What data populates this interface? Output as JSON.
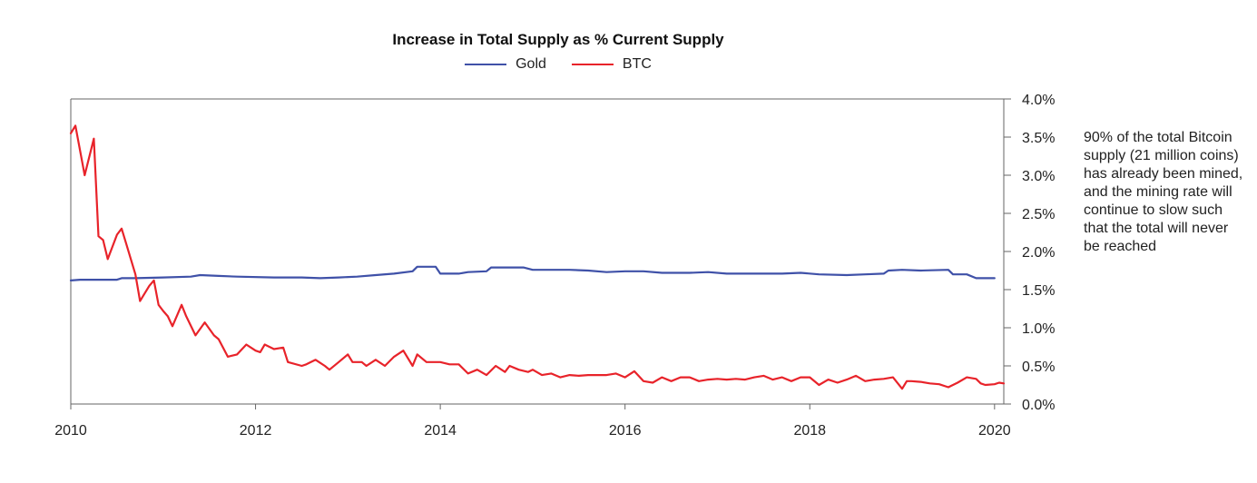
{
  "chart_data": {
    "type": "line",
    "title": "Increase in Total Supply as % Current Supply",
    "xlabel": "",
    "ylabel": "",
    "xlim": [
      2010,
      2020.1
    ],
    "ylim": [
      0.0,
      4.0
    ],
    "x_ticks": [
      2010,
      2012,
      2014,
      2016,
      2018,
      2020
    ],
    "x_tick_labels": [
      "2010",
      "2012",
      "2014",
      "2016",
      "2018",
      "2020"
    ],
    "y_ticks": [
      0.0,
      0.5,
      1.0,
      1.5,
      2.0,
      2.5,
      3.0,
      3.5,
      4.0
    ],
    "y_tick_labels": [
      "0.0%",
      "0.5%",
      "1.0%",
      "1.5%",
      "2.0%",
      "2.5%",
      "3.0%",
      "3.5%",
      "4.0%"
    ],
    "grid": false,
    "legend_position": "top-center",
    "annotation": "90% of the total Bitcoin supply (21 million coins) has already been mined, and the mining rate will continue to slow such that the total will never be reached",
    "series": [
      {
        "name": "Gold",
        "color": "#3f51a8",
        "points": [
          [
            2010.0,
            1.62
          ],
          [
            2010.1,
            1.63
          ],
          [
            2010.5,
            1.63
          ],
          [
            2010.55,
            1.65
          ],
          [
            2010.7,
            1.65
          ],
          [
            2011.0,
            1.66
          ],
          [
            2011.3,
            1.67
          ],
          [
            2011.4,
            1.69
          ],
          [
            2011.6,
            1.68
          ],
          [
            2011.8,
            1.67
          ],
          [
            2012.2,
            1.66
          ],
          [
            2012.5,
            1.66
          ],
          [
            2012.7,
            1.65
          ],
          [
            2012.9,
            1.66
          ],
          [
            2013.1,
            1.67
          ],
          [
            2013.3,
            1.69
          ],
          [
            2013.5,
            1.71
          ],
          [
            2013.7,
            1.74
          ],
          [
            2013.75,
            1.8
          ],
          [
            2013.95,
            1.8
          ],
          [
            2014.0,
            1.71
          ],
          [
            2014.2,
            1.71
          ],
          [
            2014.3,
            1.73
          ],
          [
            2014.5,
            1.74
          ],
          [
            2014.55,
            1.79
          ],
          [
            2014.9,
            1.79
          ],
          [
            2015.0,
            1.76
          ],
          [
            2015.2,
            1.76
          ],
          [
            2015.4,
            1.76
          ],
          [
            2015.6,
            1.75
          ],
          [
            2015.8,
            1.73
          ],
          [
            2016.0,
            1.74
          ],
          [
            2016.2,
            1.74
          ],
          [
            2016.4,
            1.72
          ],
          [
            2016.7,
            1.72
          ],
          [
            2016.9,
            1.73
          ],
          [
            2017.1,
            1.71
          ],
          [
            2017.4,
            1.71
          ],
          [
            2017.7,
            1.71
          ],
          [
            2017.9,
            1.72
          ],
          [
            2018.1,
            1.7
          ],
          [
            2018.4,
            1.69
          ],
          [
            2018.6,
            1.7
          ],
          [
            2018.8,
            1.71
          ],
          [
            2018.85,
            1.75
          ],
          [
            2019.0,
            1.76
          ],
          [
            2019.2,
            1.75
          ],
          [
            2019.5,
            1.76
          ],
          [
            2019.55,
            1.7
          ],
          [
            2019.7,
            1.7
          ],
          [
            2019.8,
            1.65
          ],
          [
            2020.0,
            1.65
          ]
        ]
      },
      {
        "name": "BTC",
        "color": "#e8232a",
        "points": [
          [
            2010.0,
            3.55
          ],
          [
            2010.05,
            3.65
          ],
          [
            2010.15,
            3.0
          ],
          [
            2010.25,
            3.48
          ],
          [
            2010.3,
            2.2
          ],
          [
            2010.35,
            2.15
          ],
          [
            2010.4,
            1.9
          ],
          [
            2010.5,
            2.22
          ],
          [
            2010.55,
            2.3
          ],
          [
            2010.6,
            2.1
          ],
          [
            2010.7,
            1.7
          ],
          [
            2010.75,
            1.35
          ],
          [
            2010.85,
            1.55
          ],
          [
            2010.9,
            1.62
          ],
          [
            2010.95,
            1.3
          ],
          [
            2011.0,
            1.22
          ],
          [
            2011.05,
            1.15
          ],
          [
            2011.1,
            1.02
          ],
          [
            2011.2,
            1.3
          ],
          [
            2011.25,
            1.15
          ],
          [
            2011.35,
            0.9
          ],
          [
            2011.45,
            1.07
          ],
          [
            2011.55,
            0.9
          ],
          [
            2011.6,
            0.85
          ],
          [
            2011.7,
            0.62
          ],
          [
            2011.8,
            0.65
          ],
          [
            2011.9,
            0.78
          ],
          [
            2012.0,
            0.7
          ],
          [
            2012.05,
            0.68
          ],
          [
            2012.1,
            0.78
          ],
          [
            2012.2,
            0.72
          ],
          [
            2012.3,
            0.74
          ],
          [
            2012.35,
            0.55
          ],
          [
            2012.5,
            0.5
          ],
          [
            2012.55,
            0.52
          ],
          [
            2012.65,
            0.58
          ],
          [
            2012.75,
            0.5
          ],
          [
            2012.8,
            0.45
          ],
          [
            2012.9,
            0.55
          ],
          [
            2013.0,
            0.65
          ],
          [
            2013.05,
            0.55
          ],
          [
            2013.15,
            0.55
          ],
          [
            2013.2,
            0.5
          ],
          [
            2013.3,
            0.58
          ],
          [
            2013.4,
            0.5
          ],
          [
            2013.5,
            0.62
          ],
          [
            2013.6,
            0.7
          ],
          [
            2013.7,
            0.5
          ],
          [
            2013.75,
            0.65
          ],
          [
            2013.85,
            0.55
          ],
          [
            2014.0,
            0.55
          ],
          [
            2014.1,
            0.52
          ],
          [
            2014.2,
            0.52
          ],
          [
            2014.3,
            0.4
          ],
          [
            2014.4,
            0.45
          ],
          [
            2014.5,
            0.38
          ],
          [
            2014.6,
            0.5
          ],
          [
            2014.7,
            0.42
          ],
          [
            2014.75,
            0.5
          ],
          [
            2014.85,
            0.45
          ],
          [
            2014.95,
            0.42
          ],
          [
            2015.0,
            0.45
          ],
          [
            2015.1,
            0.38
          ],
          [
            2015.2,
            0.4
          ],
          [
            2015.3,
            0.35
          ],
          [
            2015.4,
            0.38
          ],
          [
            2015.5,
            0.37
          ],
          [
            2015.6,
            0.38
          ],
          [
            2015.7,
            0.38
          ],
          [
            2015.8,
            0.38
          ],
          [
            2015.9,
            0.4
          ],
          [
            2016.0,
            0.35
          ],
          [
            2016.1,
            0.43
          ],
          [
            2016.2,
            0.3
          ],
          [
            2016.3,
            0.28
          ],
          [
            2016.4,
            0.35
          ],
          [
            2016.5,
            0.3
          ],
          [
            2016.6,
            0.35
          ],
          [
            2016.7,
            0.35
          ],
          [
            2016.8,
            0.3
          ],
          [
            2016.9,
            0.32
          ],
          [
            2017.0,
            0.33
          ],
          [
            2017.1,
            0.32
          ],
          [
            2017.2,
            0.33
          ],
          [
            2017.3,
            0.32
          ],
          [
            2017.4,
            0.35
          ],
          [
            2017.5,
            0.37
          ],
          [
            2017.6,
            0.32
          ],
          [
            2017.7,
            0.35
          ],
          [
            2017.8,
            0.3
          ],
          [
            2017.9,
            0.35
          ],
          [
            2018.0,
            0.35
          ],
          [
            2018.1,
            0.25
          ],
          [
            2018.2,
            0.32
          ],
          [
            2018.3,
            0.28
          ],
          [
            2018.4,
            0.32
          ],
          [
            2018.5,
            0.37
          ],
          [
            2018.6,
            0.3
          ],
          [
            2018.7,
            0.32
          ],
          [
            2018.8,
            0.33
          ],
          [
            2018.9,
            0.35
          ],
          [
            2019.0,
            0.2
          ],
          [
            2019.05,
            0.3
          ],
          [
            2019.1,
            0.3
          ],
          [
            2019.2,
            0.29
          ],
          [
            2019.3,
            0.27
          ],
          [
            2019.4,
            0.26
          ],
          [
            2019.5,
            0.22
          ],
          [
            2019.6,
            0.28
          ],
          [
            2019.7,
            0.35
          ],
          [
            2019.8,
            0.33
          ],
          [
            2019.85,
            0.27
          ],
          [
            2019.9,
            0.25
          ],
          [
            2020.0,
            0.26
          ],
          [
            2020.05,
            0.28
          ],
          [
            2020.1,
            0.27
          ]
        ]
      }
    ]
  }
}
